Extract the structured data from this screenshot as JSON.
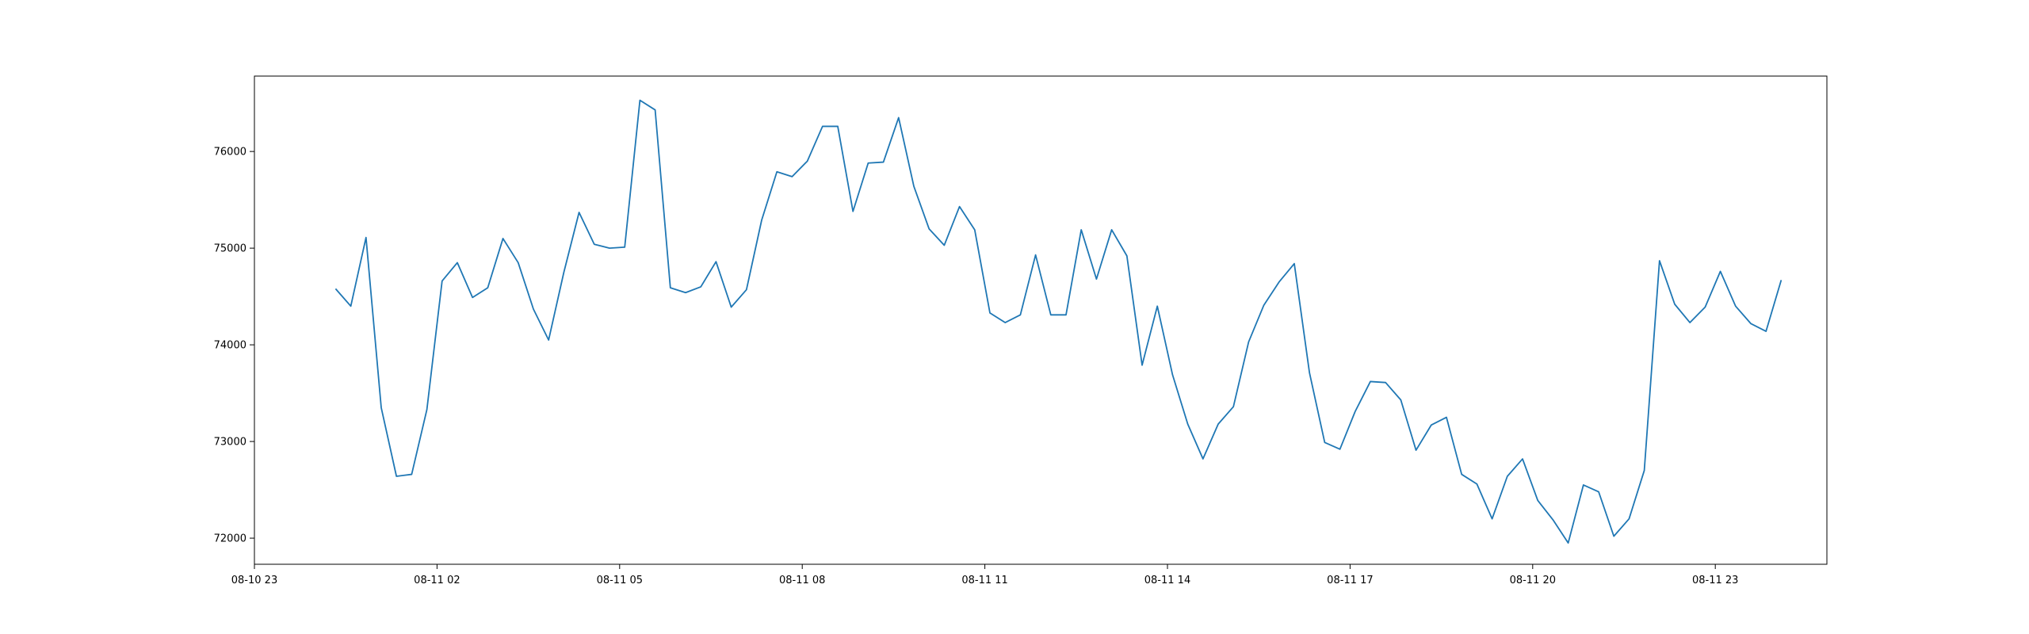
{
  "chart_data": {
    "type": "line",
    "title": "",
    "xlabel": "",
    "ylabel": "",
    "x_start": "2024-08-11 00:20",
    "x_step_minutes": 15,
    "xlim": [
      "2024-08-10 23:00",
      "2024-08-12 00:50"
    ],
    "ylim": [
      71730,
      76780
    ],
    "x_ticks": [
      {
        "label": "08-10 23",
        "value": "2024-08-10 23:00"
      },
      {
        "label": "08-11 02",
        "value": "2024-08-11 02:00"
      },
      {
        "label": "08-11 05",
        "value": "2024-08-11 05:00"
      },
      {
        "label": "08-11 08",
        "value": "2024-08-11 08:00"
      },
      {
        "label": "08-11 11",
        "value": "2024-08-11 11:00"
      },
      {
        "label": "08-11 14",
        "value": "2024-08-11 14:00"
      },
      {
        "label": "08-11 17",
        "value": "2024-08-11 17:00"
      },
      {
        "label": "08-11 20",
        "value": "2024-08-11 20:00"
      },
      {
        "label": "08-11 23",
        "value": "2024-08-11 23:00"
      }
    ],
    "y_ticks": [
      {
        "label": "72000",
        "value": 72000
      },
      {
        "label": "73000",
        "value": 73000
      },
      {
        "label": "74000",
        "value": 74000
      },
      {
        "label": "75000",
        "value": 75000
      },
      {
        "label": "76000",
        "value": 76000
      }
    ],
    "grid": false,
    "legend": "none",
    "color": "#1f77b4",
    "series": [
      {
        "name": "",
        "values": [
          74580,
          74400,
          75110,
          73350,
          72640,
          72660,
          73330,
          74660,
          74850,
          74490,
          74590,
          75100,
          74850,
          74370,
          74050,
          74750,
          75370,
          75040,
          75000,
          75010,
          76530,
          76430,
          74590,
          74540,
          74600,
          74860,
          74390,
          74570,
          75290,
          75790,
          75740,
          75900,
          76260,
          76260,
          75380,
          75880,
          75890,
          76350,
          75640,
          75200,
          75030,
          75430,
          75190,
          74330,
          74230,
          74310,
          74930,
          74310,
          74310,
          75190,
          74680,
          75190,
          74920,
          73790,
          74400,
          73690,
          73180,
          72820,
          73180,
          73360,
          74030,
          74410,
          74650,
          74840,
          73710,
          72990,
          72920,
          73310,
          73620,
          73610,
          73430,
          72910,
          73170,
          73250,
          72660,
          72560,
          72200,
          72640,
          72820,
          72390,
          72190,
          71950,
          72550,
          72480,
          72020,
          72200,
          72700,
          74870,
          74420,
          74230,
          74390,
          74760,
          74400,
          74220,
          74140,
          74670
        ]
      }
    ]
  }
}
